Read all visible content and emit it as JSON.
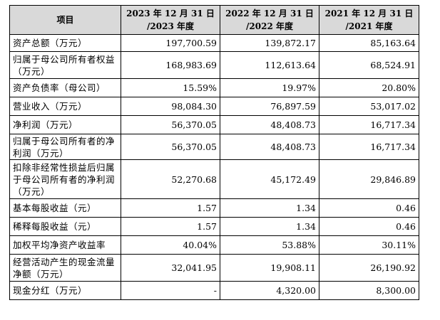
{
  "table": {
    "headers": [
      "项目",
      "2023 年 12 月 31 日\n/2023 年度",
      "2022 年 12 月 31 日\n/2022 年度",
      "2021 年 12 月 31 日\n/2021 年度"
    ],
    "rows": [
      {
        "label": "资产总额（万元）",
        "values": [
          "197,700.59",
          "139,872.17",
          "85,163.64"
        ]
      },
      {
        "label": "归属于母公司所有者权益（万元）",
        "values": [
          "168,983.69",
          "112,613.64",
          "68,524.91"
        ]
      },
      {
        "label": "资产负债率（母公司）",
        "values": [
          "15.59%",
          "19.97%",
          "20.80%"
        ]
      },
      {
        "label": "营业收入（万元）",
        "values": [
          "98,084.30",
          "76,897.59",
          "53,017.02"
        ]
      },
      {
        "label": "净利润（万元）",
        "values": [
          "56,370.05",
          "48,408.73",
          "16,717.34"
        ]
      },
      {
        "label": "归属于母公司所有者的净利润（万元）",
        "values": [
          "56,370.05",
          "48,408.73",
          "16,717.34"
        ]
      },
      {
        "label": "扣除非经常性损益后归属于母公司所有者的净利润（万元）",
        "values": [
          "52,270.68",
          "45,172.49",
          "29,846.89"
        ]
      },
      {
        "label": "基本每股收益（元）",
        "values": [
          "1.57",
          "1.34",
          "0.46"
        ]
      },
      {
        "label": "稀释每股收益（元）",
        "values": [
          "1.57",
          "1.34",
          "0.46"
        ]
      },
      {
        "label": "加权平均净资产收益率",
        "values": [
          "40.04%",
          "53.88%",
          "30.11%"
        ]
      },
      {
        "label": "经营活动产生的现金流量净额（万元）",
        "values": [
          "32,041.95",
          "19,908.11",
          "26,190.92"
        ]
      },
      {
        "label": "现金分红（万元）",
        "values": [
          "-",
          "4,320.00",
          "8,300.00"
        ]
      }
    ]
  }
}
